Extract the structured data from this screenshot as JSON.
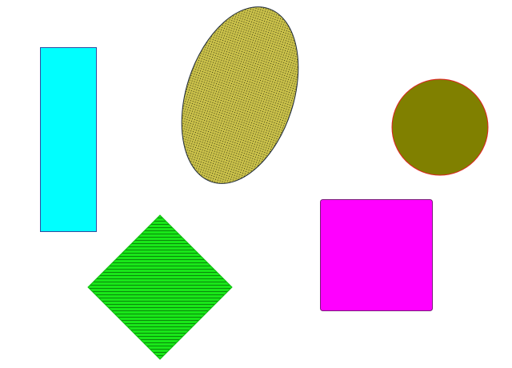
{
  "shapes": {
    "rectangle": {
      "kind": "rectangle",
      "fill": "#00FFFF",
      "stroke": "#2E4BA0",
      "pattern": "solid"
    },
    "ellipse": {
      "kind": "ellipse",
      "fill": "#C9C04A",
      "pattern_color": "#3A3A10",
      "stroke": "#1E2A3A",
      "pattern": "dots"
    },
    "circle": {
      "kind": "circle",
      "fill": "#808000",
      "stroke": "#E02020",
      "pattern": "solid"
    },
    "diamond": {
      "kind": "diamond",
      "fill": "#19E619",
      "pattern_color": "#0A8A0A",
      "stroke": "#10C010",
      "pattern": "horizontal-stripes"
    },
    "square": {
      "kind": "rounded-square",
      "fill": "#FF00FF",
      "stroke": "#7A1A7A",
      "pattern": "solid"
    }
  }
}
